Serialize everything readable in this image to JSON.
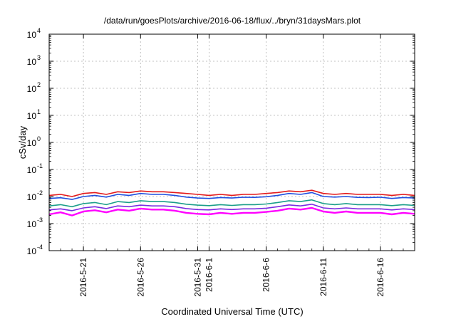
{
  "chart_data": {
    "type": "line",
    "title": "/data/run/goesPlots/archive/2016-06-18/flux/../bryn/31daysMars.plot",
    "xlabel": "Coordinated Universal Time (UTC)",
    "ylabel": "cSv/day",
    "y_scale": "log",
    "ylim": [
      0.0001,
      10000
    ],
    "xlim": [
      "2016-05-18",
      "2016-06-19"
    ],
    "grid": true,
    "x_ticks": [
      {
        "date": "2016-05-21",
        "label": "2016-5-21"
      },
      {
        "date": "2016-05-26",
        "label": "2016-5-26"
      },
      {
        "date": "2016-05-31",
        "label": "2016-5-31"
      },
      {
        "date": "2016-06-01",
        "label": "2016-6-1"
      },
      {
        "date": "2016-06-06",
        "label": "2016-6-6"
      },
      {
        "date": "2016-06-11",
        "label": "2016-6-11"
      },
      {
        "date": "2016-06-16",
        "label": "2016-6-16"
      }
    ],
    "y_ticks": [
      {
        "value": 0.0001,
        "base": "10",
        "exp": "-4"
      },
      {
        "value": 0.001,
        "base": "10",
        "exp": "-3"
      },
      {
        "value": 0.01,
        "base": "10",
        "exp": "-2"
      },
      {
        "value": 0.1,
        "base": "10",
        "exp": "-1"
      },
      {
        "value": 1,
        "base": "10",
        "exp": "0"
      },
      {
        "value": 10,
        "base": "10",
        "exp": "1"
      },
      {
        "value": 100,
        "base": "10",
        "exp": "2"
      },
      {
        "value": 1000,
        "base": "10",
        "exp": "3"
      },
      {
        "value": 10000,
        "base": "10",
        "exp": "4"
      }
    ],
    "x": [
      "2016-05-18",
      "2016-05-19",
      "2016-05-20",
      "2016-05-21",
      "2016-05-22",
      "2016-05-23",
      "2016-05-24",
      "2016-05-25",
      "2016-05-26",
      "2016-05-27",
      "2016-05-28",
      "2016-05-29",
      "2016-05-30",
      "2016-05-31",
      "2016-06-01",
      "2016-06-02",
      "2016-06-03",
      "2016-06-04",
      "2016-06-05",
      "2016-06-06",
      "2016-06-07",
      "2016-06-08",
      "2016-06-09",
      "2016-06-10",
      "2016-06-11",
      "2016-06-12",
      "2016-06-13",
      "2016-06-14",
      "2016-06-15",
      "2016-06-16",
      "2016-06-17",
      "2016-06-18",
      "2016-06-19"
    ],
    "series": [
      {
        "color": "#e31a1c",
        "values": [
          0.011,
          0.012,
          0.01,
          0.013,
          0.014,
          0.012,
          0.015,
          0.014,
          0.016,
          0.015,
          0.015,
          0.014,
          0.013,
          0.012,
          0.011,
          0.012,
          0.011,
          0.012,
          0.012,
          0.013,
          0.014,
          0.016,
          0.015,
          0.017,
          0.013,
          0.012,
          0.013,
          0.012,
          0.012,
          0.012,
          0.011,
          0.012,
          0.011
        ]
      },
      {
        "color": "#1f4fe0",
        "values": [
          0.0085,
          0.009,
          0.0078,
          0.01,
          0.011,
          0.0095,
          0.012,
          0.011,
          0.013,
          0.012,
          0.012,
          0.011,
          0.0095,
          0.0088,
          0.0085,
          0.0092,
          0.0088,
          0.0094,
          0.0093,
          0.0098,
          0.011,
          0.013,
          0.012,
          0.014,
          0.01,
          0.0095,
          0.01,
          0.0093,
          0.0092,
          0.0094,
          0.0085,
          0.0092,
          0.0088
        ]
      },
      {
        "color": "#1a9e8a",
        "values": [
          0.0045,
          0.005,
          0.0042,
          0.0055,
          0.006,
          0.005,
          0.0065,
          0.006,
          0.007,
          0.0065,
          0.0065,
          0.006,
          0.0052,
          0.0048,
          0.0046,
          0.005,
          0.0047,
          0.005,
          0.005,
          0.0053,
          0.006,
          0.007,
          0.0065,
          0.0075,
          0.0055,
          0.005,
          0.0055,
          0.005,
          0.005,
          0.005,
          0.0046,
          0.005,
          0.0047
        ]
      },
      {
        "color": "#7a2be2",
        "values": [
          0.0032,
          0.0035,
          0.003,
          0.0038,
          0.0042,
          0.0036,
          0.0045,
          0.0042,
          0.0048,
          0.0045,
          0.0045,
          0.0042,
          0.0036,
          0.0033,
          0.0032,
          0.0035,
          0.0033,
          0.0035,
          0.0035,
          0.0037,
          0.0042,
          0.0049,
          0.0045,
          0.0052,
          0.0038,
          0.0035,
          0.0038,
          0.0035,
          0.0035,
          0.0035,
          0.0032,
          0.0035,
          0.0033
        ]
      },
      {
        "color": "#ff00ff",
        "values": [
          0.0022,
          0.0026,
          0.002,
          0.0028,
          0.0031,
          0.0026,
          0.0033,
          0.003,
          0.0036,
          0.0033,
          0.0033,
          0.003,
          0.0025,
          0.0023,
          0.0022,
          0.0025,
          0.0023,
          0.0025,
          0.0025,
          0.0027,
          0.003,
          0.0036,
          0.0033,
          0.0038,
          0.0028,
          0.0025,
          0.0028,
          0.0025,
          0.0025,
          0.0025,
          0.0022,
          0.0025,
          0.0023
        ]
      }
    ]
  }
}
